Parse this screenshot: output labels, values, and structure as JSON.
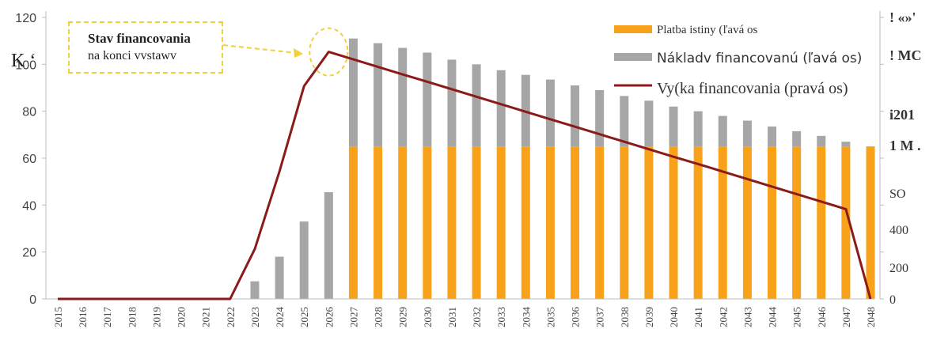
{
  "chart_data": {
    "type": "bar",
    "categories": [
      "2015",
      "2016",
      "2017",
      "2018",
      "2019",
      "2020",
      "2021",
      "2022",
      "2023",
      "2024",
      "2025",
      "2026",
      "2027",
      "2028",
      "2029",
      "2030",
      "2031",
      "2032",
      "2033",
      "2034",
      "2035",
      "2036",
      "2037",
      "2038",
      "2039",
      "2040",
      "2041",
      "2042",
      "2043",
      "2044",
      "2045",
      "2046",
      "2047",
      "2048"
    ],
    "series": [
      {
        "name": "Platba istiny (ľavá os",
        "axis": "left",
        "kind": "bar",
        "color": "#f7a21a",
        "values": [
          0,
          0,
          0,
          0,
          0,
          0,
          0,
          0,
          0,
          0,
          0,
          0,
          65,
          65,
          65,
          65,
          65,
          65,
          65,
          65,
          65,
          65,
          65,
          65,
          65,
          65,
          65,
          65,
          65,
          65,
          65,
          65,
          65,
          65
        ]
      },
      {
        "name": "Nákladv financovanú (ľavá os)",
        "axis": "left",
        "kind": "bar",
        "color": "#a6a6a6",
        "values": [
          0,
          0,
          0,
          0,
          0,
          0,
          0,
          0,
          7.5,
          18,
          33,
          45.5,
          46,
          44,
          42,
          40,
          37,
          35,
          32.5,
          30.5,
          28.5,
          26,
          24,
          21.5,
          19.5,
          17,
          15,
          13,
          11,
          8.5,
          6.5,
          4.5,
          2,
          0
        ]
      },
      {
        "name": "Vy(ka financovania (pravá os)",
        "axis": "right",
        "kind": "line",
        "color": "#8b1a1a",
        "values": [
          0,
          0,
          0,
          0,
          0,
          0,
          0,
          0,
          213,
          543,
          907,
          1053,
          1021,
          989,
          957,
          926,
          894,
          862,
          830,
          798,
          766,
          734,
          702,
          670,
          638,
          606,
          575,
          543,
          511,
          479,
          447,
          415,
          383,
          0
        ]
      }
    ],
    "left_axis": {
      "ylim": [
        0,
        120
      ],
      "ticks": [
        "0",
        "20",
        "40",
        "60",
        "80",
        "100",
        "120"
      ]
    },
    "right_axis_labels": [
      "0",
      "200",
      "400",
      "SO",
      "1   M .",
      "i201",
      "! MC",
      "! «»'"
    ],
    "right_axis_note": "ticks partially illegible",
    "annotation": {
      "title": "Stav financovania",
      "subtitle": "na konci vvstawv"
    },
    "stray_label": "K ‘",
    "legend_position": "top-right",
    "grid": false
  }
}
